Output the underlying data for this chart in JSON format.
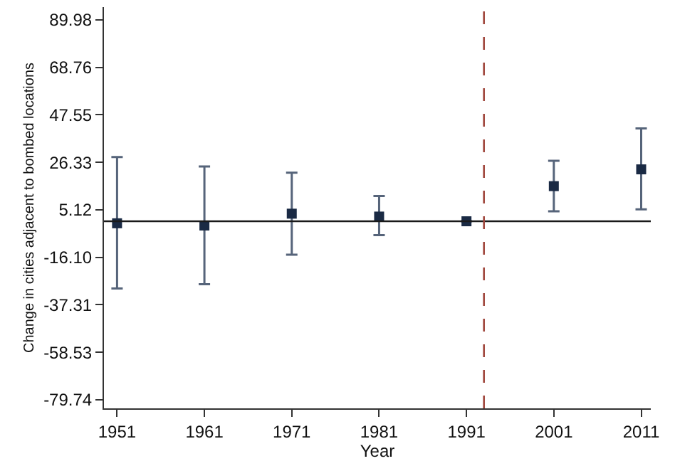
{
  "chart_data": {
    "type": "scatter",
    "xlabel": "Year",
    "ylabel": "Change in cities adjacent to bombed locations",
    "x": [
      1951,
      1961,
      1971,
      1981,
      1991,
      2001,
      2011
    ],
    "series": [
      {
        "color": "#1a2a44",
        "values": [
          -0.9,
          -1.9,
          3.4,
          2.1,
          0,
          15.7,
          23.2
        ],
        "errors": [
          [
            -30.0,
            28.7
          ],
          [
            -28.1,
            24.5
          ],
          [
            -14.9,
            21.7
          ],
          [
            -6.2,
            11.3
          ],
          null,
          [
            4.5,
            27.0
          ],
          [
            5.3,
            41.5
          ]
        ]
      }
    ],
    "xlim": [
      1949.5,
      2012.1
    ],
    "xticks": [
      1951,
      1961,
      1971,
      1981,
      1991,
      2001,
      2011
    ],
    "ylim": [
      -83.6,
      95.7
    ],
    "yticks": [
      -79.74,
      -58.53,
      -37.31,
      {
        "value": -16.1,
        "label": "-16.10"
      },
      5.12,
      26.33,
      47.55,
      68.76,
      89.98
    ],
    "ref_lines": [
      {
        "axis": "y",
        "value": 0,
        "color": "#1a1a1a",
        "line_style": "solid"
      },
      {
        "axis": "x",
        "value": 1993,
        "color": "#a0463c",
        "line_style": "dashed"
      }
    ],
    "marker": "square"
  }
}
